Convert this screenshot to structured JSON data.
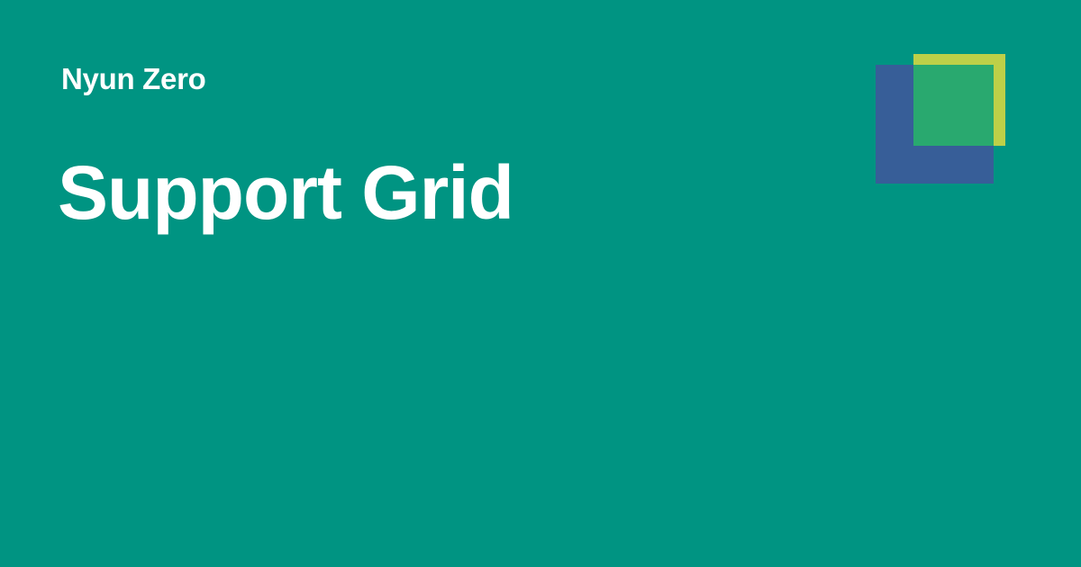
{
  "brand": {
    "name": "Nyun Zero"
  },
  "page": {
    "title": "Support Grid"
  },
  "colors": {
    "background": "#009482",
    "text": "#ffffff",
    "logo_back_square": "#375e98",
    "logo_front_square": "#bed048",
    "logo_overlap": "#29a96f"
  },
  "logo": {
    "icon": "overlapping-squares-logo"
  }
}
